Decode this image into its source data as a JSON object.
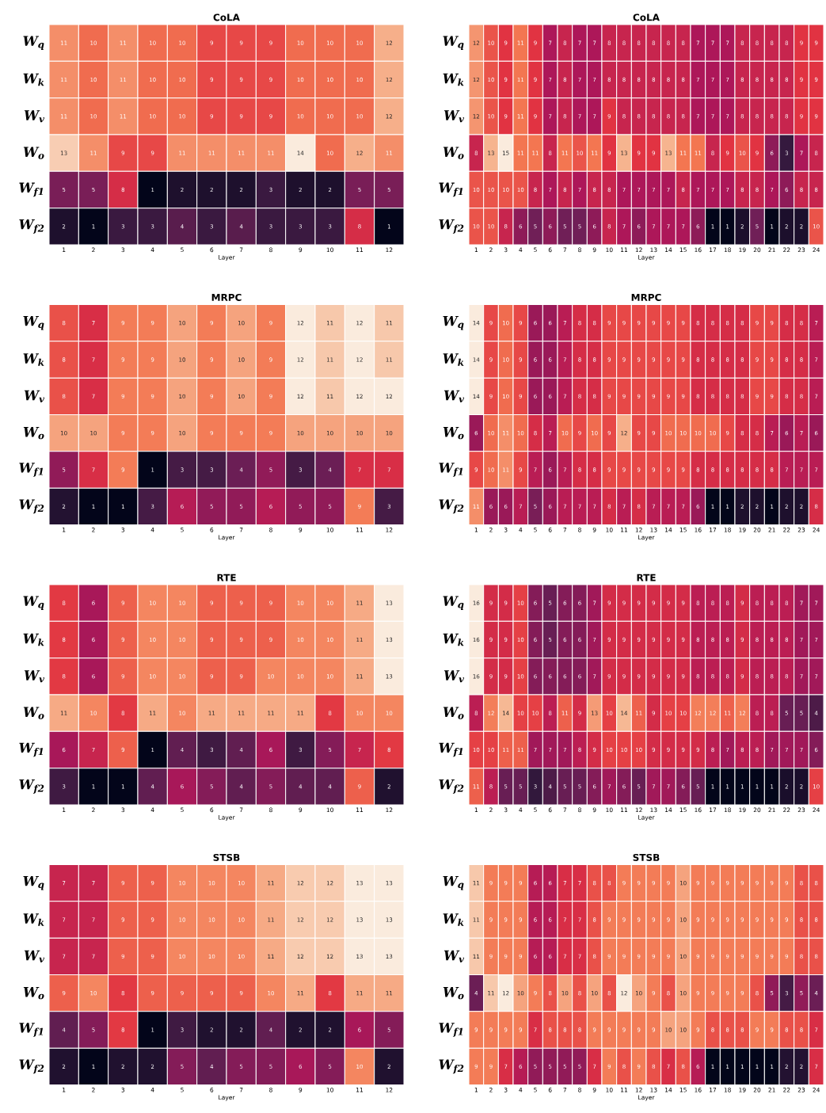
{
  "chart_data": [
    {
      "type": "heatmap",
      "title": "CoLA",
      "xlabel": "Layer",
      "data_labels": true,
      "categories": [
        "1",
        "2",
        "3",
        "4",
        "5",
        "6",
        "7",
        "8",
        "9",
        "10",
        "11",
        "12"
      ],
      "y_categories": [
        "W$_{q}$",
        "W$_{k}$",
        "W$_{v}$",
        "W$_{o}$",
        "W$_{f1}$",
        "W$_{f2}$"
      ],
      "cells": [
        [
          11,
          10,
          11,
          10,
          10,
          9,
          9,
          9,
          10,
          10,
          10,
          12
        ],
        [
          11,
          10,
          11,
          10,
          10,
          9,
          9,
          9,
          10,
          10,
          10,
          12
        ],
        [
          11,
          10,
          11,
          10,
          10,
          9,
          9,
          9,
          10,
          10,
          10,
          12
        ],
        [
          13,
          11,
          9,
          9,
          11,
          11,
          11,
          11,
          14,
          10,
          12,
          11
        ],
        [
          5,
          5,
          8,
          1,
          2,
          2,
          2,
          3,
          2,
          2,
          5,
          5
        ],
        [
          2,
          1,
          3,
          3,
          4,
          3,
          4,
          3,
          3,
          3,
          8,
          1
        ]
      ]
    },
    {
      "type": "heatmap",
      "title": "CoLA",
      "xlabel": "Layer",
      "data_labels": true,
      "categories": [
        "1",
        "2",
        "3",
        "4",
        "5",
        "6",
        "7",
        "8",
        "9",
        "10",
        "11",
        "12",
        "13",
        "14",
        "15",
        "16",
        "17",
        "18",
        "19",
        "20",
        "21",
        "22",
        "23",
        "24"
      ],
      "y_categories": [
        "W$_{q}$",
        "W$_{k}$",
        "W$_{v}$",
        "W$_{o}$",
        "W$_{f1}$",
        "W$_{f2}$"
      ],
      "cells": [
        [
          12,
          10,
          9,
          11,
          9,
          7,
          8,
          7,
          7,
          8,
          8,
          8,
          8,
          8,
          8,
          7,
          7,
          7,
          8,
          8,
          8,
          8,
          9,
          9
        ],
        [
          12,
          10,
          9,
          11,
          9,
          7,
          8,
          7,
          7,
          8,
          8,
          8,
          8,
          8,
          8,
          7,
          7,
          7,
          8,
          8,
          8,
          8,
          9,
          9
        ],
        [
          12,
          10,
          9,
          11,
          9,
          7,
          8,
          7,
          7,
          9,
          8,
          8,
          8,
          8,
          8,
          7,
          7,
          7,
          8,
          8,
          8,
          8,
          9,
          9
        ],
        [
          8,
          13,
          15,
          11,
          11,
          8,
          11,
          10,
          11,
          9,
          13,
          9,
          9,
          13,
          11,
          11,
          8,
          9,
          10,
          9,
          6,
          3,
          7,
          8
        ],
        [
          10,
          10,
          10,
          10,
          8,
          7,
          8,
          7,
          8,
          8,
          7,
          7,
          7,
          7,
          8,
          7,
          7,
          7,
          8,
          8,
          7,
          6,
          8,
          8
        ],
        [
          10,
          10,
          8,
          6,
          5,
          6,
          5,
          5,
          6,
          8,
          7,
          6,
          7,
          7,
          7,
          6,
          1,
          1,
          2,
          5,
          1,
          2,
          2,
          10
        ]
      ]
    },
    {
      "type": "heatmap",
      "title": "MRPC",
      "xlabel": "Layer",
      "data_labels": true,
      "categories": [
        "1",
        "2",
        "3",
        "4",
        "5",
        "6",
        "7",
        "8",
        "9",
        "10",
        "11",
        "12"
      ],
      "y_categories": [
        "W$_{q}$",
        "W$_{k}$",
        "W$_{v}$",
        "W$_{o}$",
        "W$_{f1}$",
        "W$_{f2}$"
      ],
      "cells": [
        [
          8,
          7,
          9,
          9,
          10,
          9,
          10,
          9,
          12,
          11,
          12,
          11
        ],
        [
          8,
          7,
          9,
          9,
          10,
          9,
          10,
          9,
          12,
          11,
          12,
          11
        ],
        [
          8,
          7,
          9,
          9,
          10,
          9,
          10,
          9,
          12,
          11,
          12,
          12
        ],
        [
          10,
          10,
          9,
          9,
          10,
          9,
          9,
          9,
          10,
          10,
          10,
          10
        ],
        [
          5,
          7,
          9,
          1,
          3,
          3,
          4,
          5,
          3,
          4,
          7,
          7
        ],
        [
          2,
          1,
          1,
          3,
          6,
          5,
          5,
          6,
          5,
          5,
          9,
          3
        ]
      ]
    },
    {
      "type": "heatmap",
      "title": "MRPC",
      "xlabel": "Layer",
      "data_labels": true,
      "categories": [
        "1",
        "2",
        "3",
        "4",
        "5",
        "6",
        "7",
        "8",
        "9",
        "10",
        "11",
        "12",
        "13",
        "14",
        "15",
        "16",
        "17",
        "18",
        "19",
        "20",
        "21",
        "22",
        "23",
        "24"
      ],
      "y_categories": [
        "W$_{q}$",
        "W$_{k}$",
        "W$_{v}$",
        "W$_{o}$",
        "W$_{f1}$",
        "W$_{f2}$"
      ],
      "cells": [
        [
          14,
          9,
          10,
          9,
          6,
          6,
          7,
          8,
          8,
          9,
          9,
          9,
          9,
          9,
          9,
          8,
          8,
          8,
          8,
          9,
          9,
          8,
          8,
          7
        ],
        [
          14,
          9,
          10,
          9,
          6,
          6,
          7,
          8,
          8,
          9,
          9,
          9,
          9,
          9,
          9,
          8,
          8,
          8,
          8,
          9,
          9,
          8,
          8,
          7
        ],
        [
          14,
          9,
          10,
          9,
          6,
          6,
          7,
          8,
          8,
          9,
          9,
          9,
          9,
          9,
          9,
          8,
          8,
          8,
          8,
          9,
          9,
          8,
          8,
          7
        ],
        [
          6,
          10,
          11,
          10,
          8,
          7,
          10,
          9,
          10,
          9,
          12,
          9,
          9,
          10,
          10,
          10,
          10,
          9,
          8,
          8,
          7,
          6,
          7,
          6
        ],
        [
          9,
          10,
          11,
          9,
          7,
          6,
          7,
          8,
          8,
          9,
          9,
          9,
          9,
          9,
          9,
          8,
          8,
          8,
          8,
          8,
          8,
          7,
          7,
          7
        ],
        [
          11,
          6,
          6,
          7,
          5,
          6,
          7,
          7,
          7,
          8,
          7,
          8,
          7,
          7,
          7,
          6,
          1,
          1,
          2,
          2,
          1,
          2,
          2,
          8
        ]
      ]
    },
    {
      "type": "heatmap",
      "title": "RTE",
      "xlabel": "Layer",
      "data_labels": true,
      "categories": [
        "1",
        "2",
        "3",
        "4",
        "5",
        "6",
        "7",
        "8",
        "9",
        "10",
        "11",
        "12"
      ],
      "y_categories": [
        "W$_{q}$",
        "W$_{k}$",
        "W$_{v}$",
        "W$_{o}$",
        "W$_{f1}$",
        "W$_{f2}$"
      ],
      "cells": [
        [
          8,
          6,
          9,
          10,
          10,
          9,
          9,
          9,
          10,
          10,
          11,
          13
        ],
        [
          8,
          6,
          9,
          10,
          10,
          9,
          9,
          9,
          10,
          10,
          11,
          13
        ],
        [
          8,
          6,
          9,
          10,
          10,
          9,
          9,
          10,
          10,
          10,
          11,
          13
        ],
        [
          11,
          10,
          8,
          11,
          10,
          11,
          11,
          11,
          11,
          8,
          10,
          10
        ],
        [
          6,
          7,
          9,
          1,
          4,
          3,
          4,
          6,
          3,
          5,
          7,
          8
        ],
        [
          3,
          1,
          1,
          4,
          6,
          5,
          4,
          5,
          4,
          4,
          9,
          2
        ]
      ]
    },
    {
      "type": "heatmap",
      "title": "RTE",
      "xlabel": "Layer",
      "data_labels": true,
      "categories": [
        "1",
        "2",
        "3",
        "4",
        "5",
        "6",
        "7",
        "8",
        "9",
        "10",
        "11",
        "12",
        "13",
        "14",
        "15",
        "16",
        "17",
        "18",
        "19",
        "20",
        "21",
        "22",
        "23",
        "24"
      ],
      "y_categories": [
        "W$_{q}$",
        "W$_{k}$",
        "W$_{v}$",
        "W$_{o}$",
        "W$_{f1}$",
        "W$_{f2}$"
      ],
      "cells": [
        [
          16,
          9,
          9,
          10,
          6,
          5,
          6,
          6,
          7,
          9,
          9,
          9,
          9,
          9,
          9,
          8,
          8,
          8,
          9,
          8,
          8,
          8,
          7,
          7
        ],
        [
          16,
          9,
          9,
          10,
          6,
          5,
          6,
          6,
          7,
          9,
          9,
          9,
          9,
          9,
          9,
          8,
          8,
          8,
          9,
          8,
          8,
          8,
          7,
          7
        ],
        [
          16,
          9,
          9,
          10,
          6,
          6,
          6,
          6,
          7,
          9,
          9,
          9,
          9,
          9,
          9,
          8,
          8,
          8,
          9,
          8,
          8,
          8,
          7,
          7
        ],
        [
          8,
          12,
          14,
          10,
          10,
          8,
          11,
          9,
          13,
          10,
          14,
          11,
          9,
          10,
          10,
          12,
          12,
          11,
          12,
          8,
          8,
          5,
          5,
          4
        ],
        [
          10,
          10,
          11,
          11,
          7,
          7,
          7,
          8,
          9,
          10,
          10,
          10,
          9,
          9,
          9,
          9,
          8,
          7,
          8,
          8,
          7,
          7,
          7,
          6
        ],
        [
          11,
          8,
          5,
          5,
          3,
          4,
          5,
          5,
          6,
          7,
          6,
          5,
          7,
          7,
          6,
          5,
          1,
          1,
          1,
          1,
          1,
          2,
          2,
          10
        ]
      ]
    },
    {
      "type": "heatmap",
      "title": "STSB",
      "xlabel": "Layer",
      "data_labels": true,
      "categories": [
        "1",
        "2",
        "3",
        "4",
        "5",
        "6",
        "7",
        "8",
        "9",
        "10",
        "11",
        "12"
      ],
      "y_categories": [
        "W$_{q}$",
        "W$_{k}$",
        "W$_{v}$",
        "W$_{o}$",
        "W$_{f1}$",
        "W$_{f2}$"
      ],
      "cells": [
        [
          7,
          7,
          9,
          9,
          10,
          10,
          10,
          11,
          12,
          12,
          13,
          13
        ],
        [
          7,
          7,
          9,
          9,
          10,
          10,
          10,
          11,
          12,
          12,
          13,
          13
        ],
        [
          7,
          7,
          9,
          9,
          10,
          10,
          10,
          11,
          12,
          12,
          13,
          13
        ],
        [
          9,
          10,
          8,
          9,
          9,
          9,
          9,
          10,
          11,
          8,
          11,
          11
        ],
        [
          4,
          5,
          8,
          1,
          3,
          2,
          2,
          4,
          2,
          2,
          6,
          5
        ],
        [
          2,
          1,
          2,
          2,
          5,
          4,
          5,
          5,
          6,
          5,
          10,
          2
        ]
      ]
    },
    {
      "type": "heatmap",
      "title": "STSB",
      "xlabel": "Layer",
      "data_labels": true,
      "categories": [
        "1",
        "2",
        "3",
        "4",
        "5",
        "6",
        "7",
        "8",
        "9",
        "10",
        "11",
        "12",
        "13",
        "14",
        "15",
        "16",
        "17",
        "18",
        "19",
        "20",
        "21",
        "22",
        "23",
        "24"
      ],
      "y_categories": [
        "W$_{q}$",
        "W$_{k}$",
        "W$_{v}$",
        "W$_{o}$",
        "W$_{f1}$",
        "W$_{f2}$"
      ],
      "cells": [
        [
          11,
          9,
          9,
          9,
          6,
          6,
          7,
          7,
          8,
          8,
          9,
          9,
          9,
          9,
          10,
          9,
          9,
          9,
          9,
          9,
          9,
          9,
          8,
          8
        ],
        [
          11,
          9,
          9,
          9,
          6,
          6,
          7,
          7,
          8,
          9,
          9,
          9,
          9,
          9,
          10,
          9,
          9,
          9,
          9,
          9,
          9,
          9,
          8,
          8
        ],
        [
          11,
          9,
          9,
          9,
          6,
          6,
          7,
          7,
          8,
          9,
          9,
          9,
          9,
          9,
          10,
          9,
          9,
          9,
          9,
          9,
          9,
          9,
          8,
          8
        ],
        [
          4,
          11,
          12,
          10,
          9,
          8,
          10,
          8,
          10,
          8,
          12,
          10,
          9,
          8,
          10,
          9,
          9,
          9,
          9,
          8,
          5,
          3,
          5,
          4
        ],
        [
          9,
          9,
          9,
          9,
          7,
          8,
          8,
          8,
          9,
          9,
          9,
          9,
          9,
          10,
          10,
          9,
          8,
          8,
          8,
          9,
          9,
          8,
          8,
          7
        ],
        [
          9,
          9,
          7,
          6,
          5,
          5,
          5,
          5,
          7,
          9,
          8,
          9,
          8,
          7,
          8,
          6,
          1,
          1,
          1,
          1,
          1,
          2,
          2,
          7
        ]
      ]
    }
  ]
}
